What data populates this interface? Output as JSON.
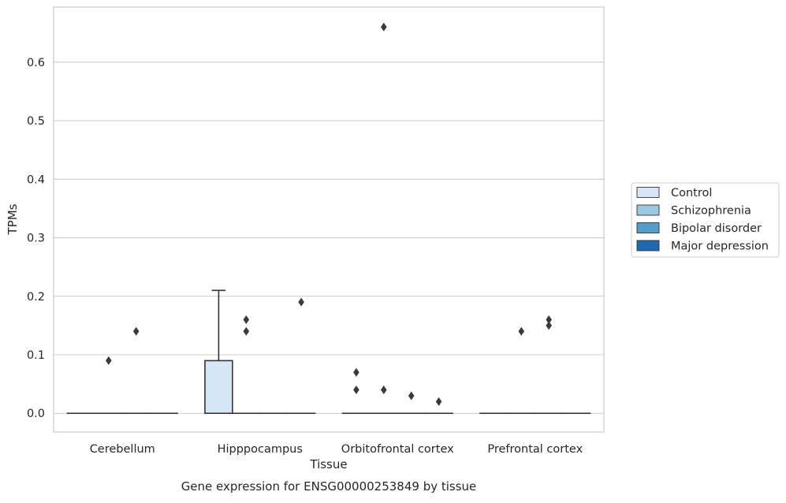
{
  "chart_data": {
    "type": "box",
    "title": "",
    "caption": "Gene expression for ENSG00000253849 by tissue",
    "xlabel": "Tissue",
    "ylabel": "TPMs",
    "ylim": [
      -0.032,
      0.694
    ],
    "yticks": [
      0.0,
      0.1,
      0.2,
      0.3,
      0.4,
      0.5,
      0.6
    ],
    "ytick_labels": [
      "0.0",
      "0.1",
      "0.2",
      "0.3",
      "0.4",
      "0.5",
      "0.6"
    ],
    "grid": true,
    "legend_position": "right",
    "categories": [
      "Cerebellum",
      "Hipppocampus",
      "Orbitofrontal cortex",
      "Prefrontal cortex"
    ],
    "series": [
      {
        "name": "Control",
        "color": "#d6e6f4",
        "boxes": [
          {
            "q1": 0,
            "median": 0,
            "q3": 0,
            "whisker_low": 0,
            "whisker_high": 0,
            "outliers": []
          },
          {
            "q1": 0,
            "median": 0,
            "q3": 0.09,
            "whisker_low": 0,
            "whisker_high": 0.21,
            "outliers": []
          },
          {
            "q1": 0,
            "median": 0,
            "q3": 0,
            "whisker_low": 0,
            "whisker_high": 0,
            "outliers": [
              0.04,
              0.07
            ]
          },
          {
            "q1": 0,
            "median": 0,
            "q3": 0,
            "whisker_low": 0,
            "whisker_high": 0,
            "outliers": []
          }
        ]
      },
      {
        "name": "Schizophrenia",
        "color": "#9ac8e0",
        "boxes": [
          {
            "q1": 0,
            "median": 0,
            "q3": 0,
            "whisker_low": 0,
            "whisker_high": 0,
            "outliers": [
              0.09
            ]
          },
          {
            "q1": 0,
            "median": 0,
            "q3": 0,
            "whisker_low": 0,
            "whisker_high": 0,
            "outliers": [
              0.14,
              0.16
            ]
          },
          {
            "q1": 0,
            "median": 0,
            "q3": 0,
            "whisker_low": 0,
            "whisker_high": 0,
            "outliers": [
              0.04,
              0.66
            ]
          },
          {
            "q1": 0,
            "median": 0,
            "q3": 0,
            "whisker_low": 0,
            "whisker_high": 0,
            "outliers": [
              0.14
            ]
          }
        ]
      },
      {
        "name": "Bipolar disorder",
        "color": "#529dcc",
        "boxes": [
          {
            "q1": 0,
            "median": 0,
            "q3": 0,
            "whisker_low": 0,
            "whisker_high": 0,
            "outliers": [
              0.14
            ]
          },
          {
            "q1": 0,
            "median": 0,
            "q3": 0,
            "whisker_low": 0,
            "whisker_high": 0,
            "outliers": []
          },
          {
            "q1": 0,
            "median": 0,
            "q3": 0,
            "whisker_low": 0,
            "whisker_high": 0,
            "outliers": [
              0.03
            ]
          },
          {
            "q1": 0,
            "median": 0,
            "q3": 0,
            "whisker_low": 0,
            "whisker_high": 0,
            "outliers": [
              0.15,
              0.16
            ]
          }
        ]
      },
      {
        "name": "Major depression",
        "color": "#1c6aaf",
        "boxes": [
          {
            "q1": 0,
            "median": 0,
            "q3": 0,
            "whisker_low": 0,
            "whisker_high": 0,
            "outliers": []
          },
          {
            "q1": 0,
            "median": 0,
            "q3": 0,
            "whisker_low": 0,
            "whisker_high": 0,
            "outliers": [
              0.19
            ]
          },
          {
            "q1": 0,
            "median": 0,
            "q3": 0,
            "whisker_low": 0,
            "whisker_high": 0,
            "outliers": [
              0.02
            ]
          },
          {
            "q1": 0,
            "median": 0,
            "q3": 0,
            "whisker_low": 0,
            "whisker_high": 0,
            "outliers": []
          }
        ]
      }
    ]
  }
}
